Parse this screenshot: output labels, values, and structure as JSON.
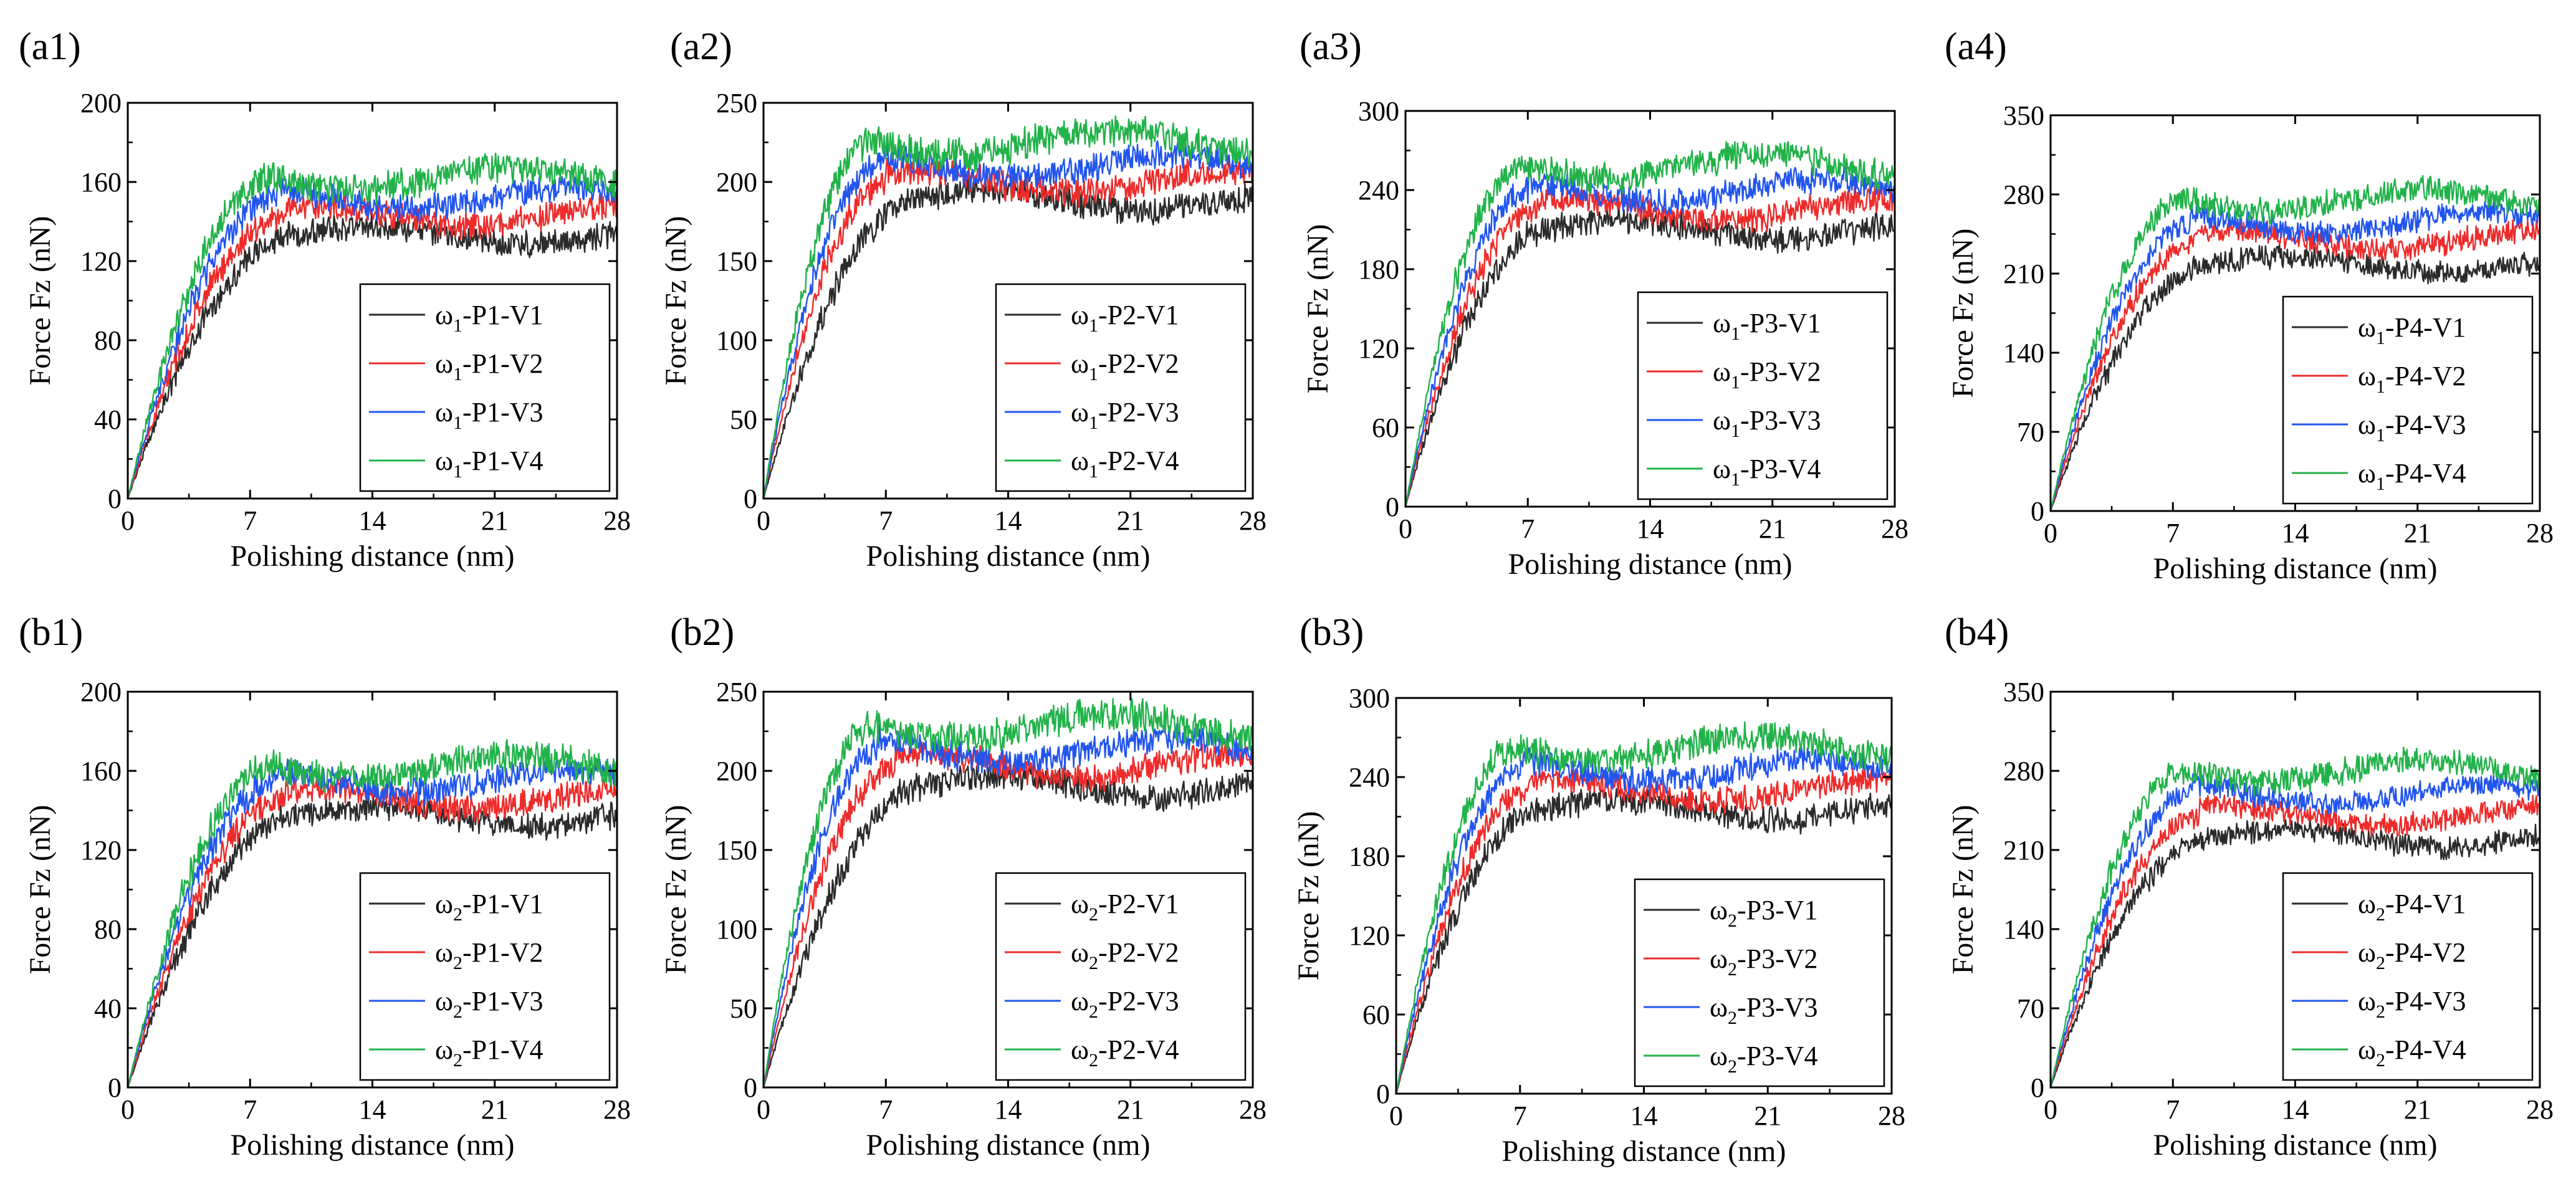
{
  "figure": {
    "colors": {
      "V1": "#2b2b2b",
      "V2": "#ee2b2b",
      "V3": "#2255ee",
      "V4": "#22b24a",
      "axis": "#000000"
    }
  },
  "chart_data": [
    {
      "id": "a1",
      "panel_label": "(a1)",
      "type": "line",
      "xlabel": "Polishing distance (nm)",
      "ylabel": "Force Fz (nN)",
      "xlim": [
        0,
        28
      ],
      "ylim": [
        0,
        200
      ],
      "xticks": [
        0,
        7,
        14,
        21,
        28
      ],
      "yticks": [
        0,
        40,
        80,
        120,
        160,
        200
      ],
      "legend": "bottom-right",
      "series": [
        {
          "name": "V1",
          "legend_prefix": "ω",
          "legend_sub": "1",
          "legend_suffix": "-P1-V1",
          "knee": 9.5,
          "plateau": 133,
          "amp": 6
        },
        {
          "name": "V2",
          "legend_prefix": "ω",
          "legend_sub": "1",
          "legend_suffix": "-P1-V2",
          "knee": 9.0,
          "plateau": 143,
          "amp": 6
        },
        {
          "name": "V3",
          "legend_prefix": "ω",
          "legend_sub": "1",
          "legend_suffix": "-P1-V3",
          "knee": 8.5,
          "plateau": 152,
          "amp": 6
        },
        {
          "name": "V4",
          "legend_prefix": "ω",
          "legend_sub": "1",
          "legend_suffix": "-P1-V4",
          "knee": 8.0,
          "plateau": 162,
          "amp": 7
        }
      ]
    },
    {
      "id": "a2",
      "panel_label": "(a2)",
      "type": "line",
      "xlabel": "Polishing distance (nm)",
      "ylabel": "Force Fz (nN)",
      "xlim": [
        0,
        28
      ],
      "ylim": [
        0,
        250
      ],
      "xticks": [
        0,
        7,
        14,
        21,
        28
      ],
      "yticks": [
        0,
        50,
        100,
        150,
        200,
        250
      ],
      "legend": "bottom-right",
      "series": [
        {
          "name": "V1",
          "legend_prefix": "ω",
          "legend_sub": "1",
          "legend_suffix": "-P2-V1",
          "knee": 8.5,
          "plateau": 188,
          "amp": 8
        },
        {
          "name": "V2",
          "legend_prefix": "ω",
          "legend_sub": "1",
          "legend_suffix": "-P2-V2",
          "knee": 7.0,
          "plateau": 200,
          "amp": 8
        },
        {
          "name": "V3",
          "legend_prefix": "ω",
          "legend_sub": "1",
          "legend_suffix": "-P2-V3",
          "knee": 6.5,
          "plateau": 210,
          "amp": 8
        },
        {
          "name": "V4",
          "legend_prefix": "ω",
          "legend_sub": "1",
          "legend_suffix": "-P2-V4",
          "knee": 6.0,
          "plateau": 225,
          "amp": 9
        }
      ]
    },
    {
      "id": "a3",
      "panel_label": "(a3)",
      "type": "line",
      "xlabel": "Polishing distance (nm)",
      "ylabel": "Force Fz (nN)",
      "xlim": [
        0,
        28
      ],
      "ylim": [
        0,
        300
      ],
      "xticks": [
        0,
        7,
        14,
        21,
        28
      ],
      "yticks": [
        0,
        60,
        120,
        180,
        240,
        300
      ],
      "legend": "bottom-right",
      "series": [
        {
          "name": "V1",
          "legend_prefix": "ω",
          "legend_sub": "1",
          "legend_suffix": "-P3-V1",
          "knee": 8.0,
          "plateau": 210,
          "amp": 9
        },
        {
          "name": "V2",
          "legend_prefix": "ω",
          "legend_sub": "1",
          "legend_suffix": "-P3-V2",
          "knee": 7.5,
          "plateau": 225,
          "amp": 9
        },
        {
          "name": "V3",
          "legend_prefix": "ω",
          "legend_sub": "1",
          "legend_suffix": "-P3-V3",
          "knee": 7.0,
          "plateau": 240,
          "amp": 9
        },
        {
          "name": "V4",
          "legend_prefix": "ω",
          "legend_sub": "1",
          "legend_suffix": "-P3-V4",
          "knee": 6.5,
          "plateau": 258,
          "amp": 10
        }
      ]
    },
    {
      "id": "a4",
      "panel_label": "(a4)",
      "type": "line",
      "xlabel": "Polishing distance (nm)",
      "ylabel": "Force Fz (nN)",
      "xlim": [
        0,
        28
      ],
      "ylim": [
        0,
        350
      ],
      "xticks": [
        0,
        7,
        14,
        21,
        28
      ],
      "yticks": [
        0,
        70,
        140,
        210,
        280,
        350
      ],
      "legend": "bottom-right",
      "series": [
        {
          "name": "V1",
          "legend_prefix": "ω",
          "legend_sub": "1",
          "legend_suffix": "-P4-V1",
          "knee": 9.0,
          "plateau": 218,
          "amp": 9
        },
        {
          "name": "V2",
          "legend_prefix": "ω",
          "legend_sub": "1",
          "legend_suffix": "-P4-V2",
          "knee": 8.5,
          "plateau": 240,
          "amp": 9
        },
        {
          "name": "V3",
          "legend_prefix": "ω",
          "legend_sub": "1",
          "legend_suffix": "-P4-V3",
          "knee": 8.0,
          "plateau": 255,
          "amp": 9
        },
        {
          "name": "V4",
          "legend_prefix": "ω",
          "legend_sub": "1",
          "legend_suffix": "-P4-V4",
          "knee": 7.5,
          "plateau": 275,
          "amp": 10
        }
      ]
    },
    {
      "id": "b1",
      "panel_label": "(b1)",
      "type": "line",
      "xlabel": "Polishing distance (nm)",
      "ylabel": "Force Fz (nN)",
      "xlim": [
        0,
        28
      ],
      "ylim": [
        0,
        200
      ],
      "xticks": [
        0,
        7,
        14,
        21,
        28
      ],
      "yticks": [
        0,
        40,
        80,
        120,
        160,
        200
      ],
      "legend": "bottom-right",
      "series": [
        {
          "name": "V1",
          "legend_prefix": "ω",
          "legend_sub": "2",
          "legend_suffix": "-P1-V1",
          "knee": 9.5,
          "plateau": 137,
          "amp": 6
        },
        {
          "name": "V2",
          "legend_prefix": "ω",
          "legend_sub": "2",
          "legend_suffix": "-P1-V2",
          "knee": 9.0,
          "plateau": 146,
          "amp": 6
        },
        {
          "name": "V3",
          "legend_prefix": "ω",
          "legend_sub": "2",
          "legend_suffix": "-P1-V3",
          "knee": 8.5,
          "plateau": 155,
          "amp": 6
        },
        {
          "name": "V4",
          "legend_prefix": "ω",
          "legend_sub": "2",
          "legend_suffix": "-P1-V4",
          "knee": 8.0,
          "plateau": 162,
          "amp": 7
        }
      ]
    },
    {
      "id": "b2",
      "panel_label": "(b2)",
      "type": "line",
      "xlabel": "Polishing distance (nm)",
      "ylabel": "Force Fz (nN)",
      "xlim": [
        0,
        28
      ],
      "ylim": [
        0,
        250
      ],
      "xticks": [
        0,
        7,
        14,
        21,
        28
      ],
      "yticks": [
        0,
        50,
        100,
        150,
        200,
        250
      ],
      "legend": "bottom-right",
      "series": [
        {
          "name": "V1",
          "legend_prefix": "ω",
          "legend_sub": "2",
          "legend_suffix": "-P2-V1",
          "knee": 9.0,
          "plateau": 190,
          "amp": 8
        },
        {
          "name": "V2",
          "legend_prefix": "ω",
          "legend_sub": "2",
          "legend_suffix": "-P2-V2",
          "knee": 7.5,
          "plateau": 203,
          "amp": 8
        },
        {
          "name": "V3",
          "legend_prefix": "ω",
          "legend_sub": "2",
          "legend_suffix": "-P2-V3",
          "knee": 6.5,
          "plateau": 213,
          "amp": 8
        },
        {
          "name": "V4",
          "legend_prefix": "ω",
          "legend_sub": "2",
          "legend_suffix": "-P2-V4",
          "knee": 6.0,
          "plateau": 228,
          "amp": 9
        }
      ]
    },
    {
      "id": "b3",
      "panel_label": "(b3)",
      "type": "line",
      "xlabel": "Polishing distance (nm)",
      "ylabel": "Force Fz (nN)",
      "xlim": [
        0,
        28
      ],
      "ylim": [
        0,
        300
      ],
      "xticks": [
        0,
        7,
        14,
        21,
        28
      ],
      "yticks": [
        0,
        60,
        120,
        180,
        240,
        300
      ],
      "legend": "bottom-right",
      "series": [
        {
          "name": "V1",
          "legend_prefix": "ω",
          "legend_sub": "2",
          "legend_suffix": "-P3-V1",
          "knee": 8.0,
          "plateau": 215,
          "amp": 9
        },
        {
          "name": "V2",
          "legend_prefix": "ω",
          "legend_sub": "2",
          "legend_suffix": "-P3-V2",
          "knee": 7.5,
          "plateau": 230,
          "amp": 9
        },
        {
          "name": "V3",
          "legend_prefix": "ω",
          "legend_sub": "2",
          "legend_suffix": "-P3-V3",
          "knee": 7.0,
          "plateau": 245,
          "amp": 9
        },
        {
          "name": "V4",
          "legend_prefix": "ω",
          "legend_sub": "2",
          "legend_suffix": "-P3-V4",
          "knee": 6.5,
          "plateau": 262,
          "amp": 10
        }
      ]
    },
    {
      "id": "b4",
      "panel_label": "(b4)",
      "type": "line",
      "xlabel": "Polishing distance (nm)",
      "ylabel": "Force Fz (nN)",
      "xlim": [
        0,
        28
      ],
      "ylim": [
        0,
        350
      ],
      "xticks": [
        0,
        7,
        14,
        21,
        28
      ],
      "yticks": [
        0,
        70,
        140,
        210,
        280,
        350
      ],
      "legend": "bottom-right",
      "series": [
        {
          "name": "V1",
          "legend_prefix": "ω",
          "legend_sub": "2",
          "legend_suffix": "-P4-V1",
          "knee": 9.0,
          "plateau": 220,
          "amp": 9
        },
        {
          "name": "V2",
          "legend_prefix": "ω",
          "legend_sub": "2",
          "legend_suffix": "-P4-V2",
          "knee": 8.5,
          "plateau": 240,
          "amp": 9
        },
        {
          "name": "V3",
          "legend_prefix": "ω",
          "legend_sub": "2",
          "legend_suffix": "-P4-V3",
          "knee": 8.0,
          "plateau": 260,
          "amp": 9
        },
        {
          "name": "V4",
          "legend_prefix": "ω",
          "legend_sub": "2",
          "legend_suffix": "-P4-V4",
          "knee": 7.5,
          "plateau": 280,
          "amp": 10
        }
      ]
    }
  ]
}
